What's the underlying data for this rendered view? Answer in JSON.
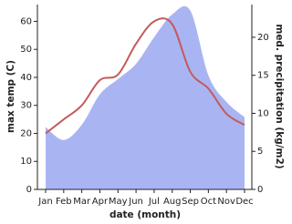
{
  "chart_data": {
    "type": "line",
    "xlabel": "date (month)",
    "ylabel": "max temp (C)",
    "y2label": "med. precipitation (kg/m2)",
    "categories": [
      "Jan",
      "Feb",
      "Mar",
      "Apr",
      "May",
      "Jun",
      "Jul",
      "Aug",
      "Sep",
      "Oct",
      "Nov",
      "Dec"
    ],
    "series": [
      {
        "color": "#a9b5f2",
        "area": true,
        "axis": "y2",
        "values": [
          8.2,
          6.5,
          8.5,
          12.5,
          14.5,
          16.5,
          20,
          23,
          23.5,
          15,
          11.5,
          9.5
        ]
      },
      {
        "color": "#c45a5a",
        "values": [
          20,
          25,
          30,
          39,
          41,
          52,
          60,
          59,
          42,
          36,
          27,
          23
        ]
      }
    ],
    "ylim": [
      0,
      66
    ],
    "yticks": [
      0,
      10,
      20,
      30,
      40,
      50,
      60
    ],
    "y2lim": [
      0,
      24.3
    ],
    "y2ticks": [
      0,
      5,
      10,
      15,
      20
    ]
  }
}
